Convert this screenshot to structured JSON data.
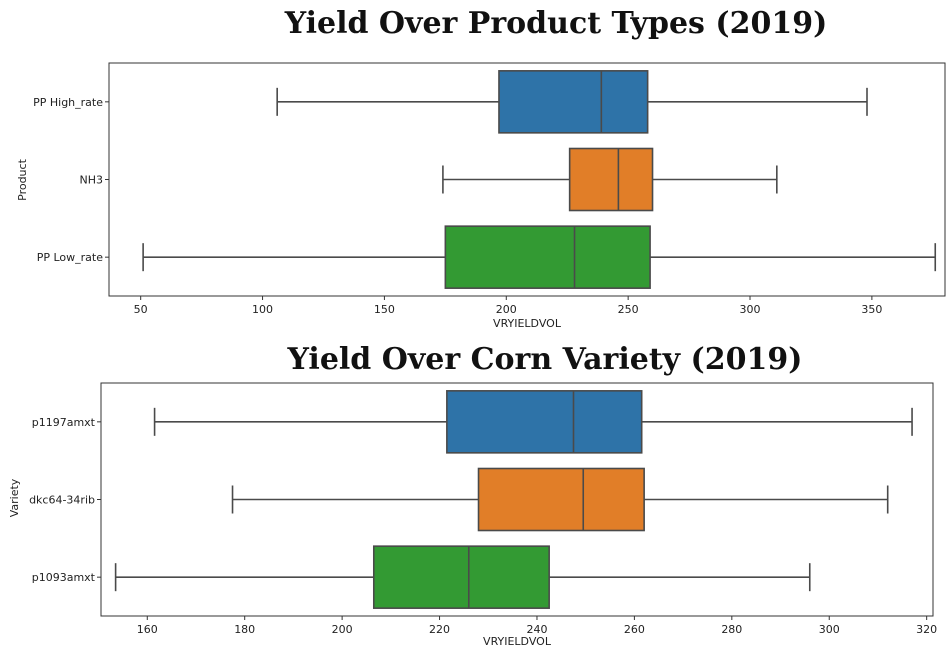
{
  "chart_data": [
    {
      "type": "boxplot",
      "orientation": "horizontal",
      "title": "Yield Over Product Types (2019)",
      "xlabel": "VRYIELDVOL",
      "ylabel": "Product",
      "xlim": [
        37,
        380
      ],
      "xticks": [
        50,
        100,
        150,
        200,
        250,
        300,
        350
      ],
      "grid": false,
      "categories": [
        "PP High_rate",
        "NH3",
        "PP Low_rate"
      ],
      "colors": [
        "#2e73a8",
        "#e17e28",
        "#339a33"
      ],
      "boxes": [
        {
          "category": "PP High_rate",
          "whisker_low": 106,
          "q1": 197,
          "median": 239,
          "q3": 258,
          "whisker_high": 348
        },
        {
          "category": "NH3",
          "whisker_low": 174,
          "q1": 226,
          "median": 246,
          "q3": 260,
          "whisker_high": 311
        },
        {
          "category": "PP Low_rate",
          "whisker_low": 51,
          "q1": 175,
          "median": 228,
          "q3": 259,
          "whisker_high": 376
        }
      ]
    },
    {
      "type": "boxplot",
      "orientation": "horizontal",
      "title": "Yield Over Corn Variety (2019)",
      "xlabel": "VRYIELDVOL",
      "ylabel": "Variety",
      "xlim": [
        150.5,
        321.3
      ],
      "xticks": [
        160,
        180,
        200,
        220,
        240,
        260,
        280,
        300,
        320
      ],
      "grid": false,
      "categories": [
        "p1197amxt",
        "dkc64-34rib",
        "p1093amxt"
      ],
      "colors": [
        "#2e73a8",
        "#e17e28",
        "#339a33"
      ],
      "boxes": [
        {
          "category": "p1197amxt",
          "whisker_low": 161.5,
          "q1": 221.5,
          "median": 247.5,
          "q3": 261.5,
          "whisker_high": 317
        },
        {
          "category": "dkc64-34rib",
          "whisker_low": 177.5,
          "q1": 228,
          "median": 249.5,
          "q3": 262,
          "whisker_high": 312
        },
        {
          "category": "p1093amxt",
          "whisker_low": 153.5,
          "q1": 206.5,
          "median": 226,
          "q3": 242.5,
          "whisker_high": 296
        }
      ]
    }
  ]
}
